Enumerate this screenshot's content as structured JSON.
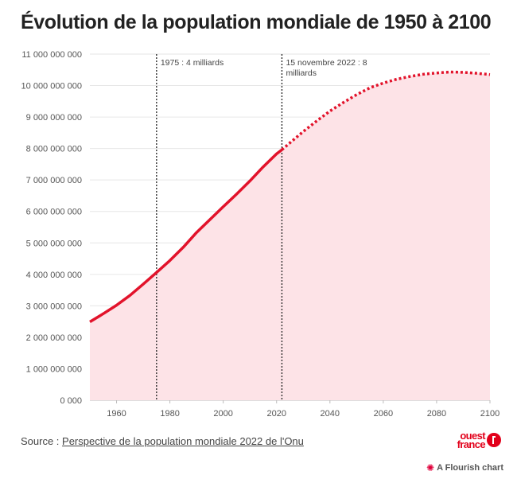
{
  "title": "Évolution de la population mondiale de 1950 à 2100",
  "source": {
    "prefix": "Source : ",
    "link_text": "Perspective de la population mondiale 2022 de l'Onu"
  },
  "brand": {
    "line1": "ouest",
    "line2": "france"
  },
  "flourish": {
    "icon": "flourish-icon",
    "label": "A Flourish chart"
  },
  "colors": {
    "line": "#e2132b",
    "area": "#fde3e7",
    "grid": "#e6e6e6",
    "marker": "#222222"
  },
  "chart_data": {
    "type": "area",
    "title": "Évolution de la population mondiale de 1950 à 2100",
    "xlim": [
      1950,
      2100
    ],
    "ylim": [
      0,
      11000000000
    ],
    "x_ticks": [
      1960,
      1980,
      2000,
      2020,
      2040,
      2060,
      2080,
      2100
    ],
    "y_ticks": [
      0,
      1000000000,
      2000000000,
      3000000000,
      4000000000,
      5000000000,
      6000000000,
      7000000000,
      8000000000,
      9000000000,
      10000000000,
      11000000000
    ],
    "y_tick_labels": [
      "0 000",
      "1 000 000 000",
      "2 000 000 000",
      "3 000 000 000",
      "4 000 000 000",
      "5 000 000 000",
      "6 000 000 000",
      "7 000 000 000",
      "8 000 000 000",
      "9 000 000 000",
      "10 000 000 000",
      "11 000 000 000"
    ],
    "grid": true,
    "projection_start": 2022,
    "series": [
      {
        "x": [
          1950,
          1955,
          1960,
          1965,
          1970,
          1975,
          1980,
          1985,
          1990,
          1995,
          2000,
          2005,
          2010,
          2015,
          2020,
          2022,
          2025,
          2030,
          2035,
          2040,
          2045,
          2050,
          2055,
          2060,
          2065,
          2070,
          2075,
          2080,
          2085,
          2090,
          2095,
          2100
        ],
        "y": [
          2490000000,
          2750000000,
          3020000000,
          3330000000,
          3690000000,
          4060000000,
          4440000000,
          4860000000,
          5330000000,
          5740000000,
          6150000000,
          6550000000,
          6970000000,
          7420000000,
          7830000000,
          7960000000,
          8180000000,
          8540000000,
          8870000000,
          9190000000,
          9460000000,
          9710000000,
          9930000000,
          10080000000,
          10200000000,
          10290000000,
          10360000000,
          10400000000,
          10430000000,
          10420000000,
          10390000000,
          10350000000
        ]
      }
    ],
    "annotations": [
      {
        "x": 1975,
        "label": "1975 : 4 milliards"
      },
      {
        "x": 2022,
        "label_lines": [
          "15 novembre 2022 : 8",
          "milliards"
        ]
      }
    ]
  }
}
